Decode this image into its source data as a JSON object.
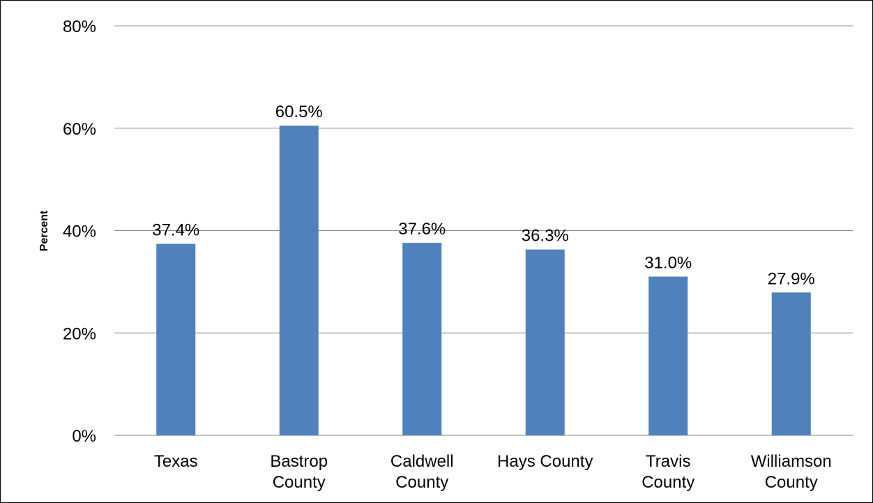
{
  "chart_data": {
    "type": "bar",
    "title": "",
    "xlabel": "",
    "ylabel": "Percent",
    "ylim": [
      0,
      80
    ],
    "yticks": [
      0,
      20,
      40,
      60,
      80
    ],
    "ytick_labels": [
      "0%",
      "20%",
      "40%",
      "60%",
      "80%"
    ],
    "grid": true,
    "categories": [
      [
        "Texas"
      ],
      [
        "Bastrop",
        "County"
      ],
      [
        "Caldwell",
        "County"
      ],
      [
        "Hays County"
      ],
      [
        "Travis",
        "County"
      ],
      [
        "Williamson",
        "County"
      ]
    ],
    "values": [
      37.4,
      60.5,
      37.6,
      36.3,
      31.0,
      27.9
    ],
    "data_labels": [
      "37.4%",
      "60.5%",
      "37.6%",
      "36.3%",
      "31.0%",
      "27.9%"
    ],
    "bar_color": "#4f81bd",
    "gridline_color": "#8c8c8c"
  }
}
